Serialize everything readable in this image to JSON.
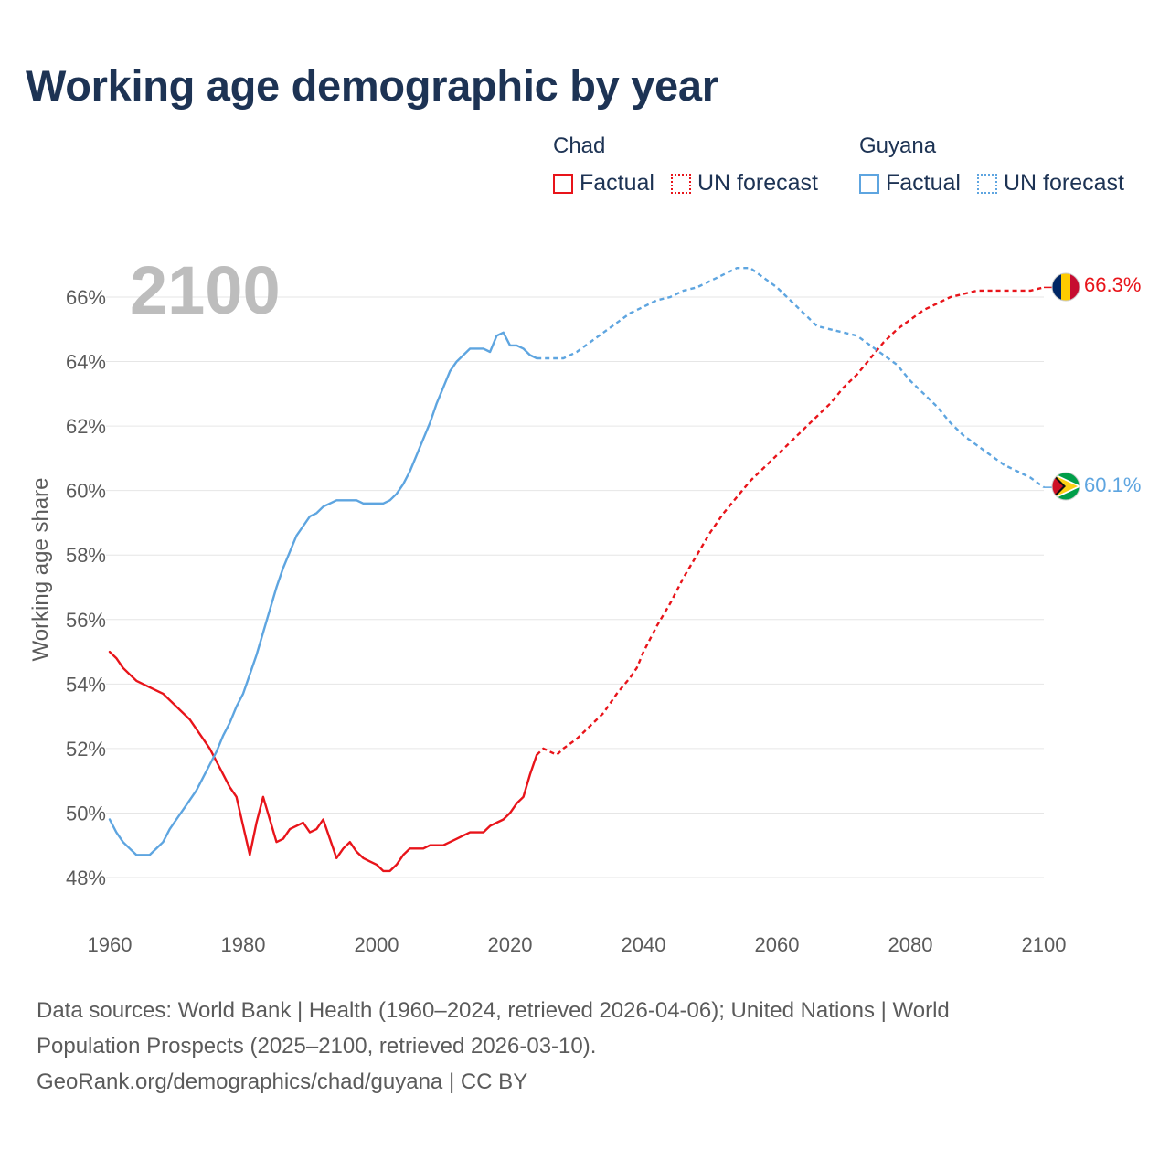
{
  "title": "Working age demographic by year",
  "colors": {
    "chad": "#e8141a",
    "guyana": "#5ea5e0",
    "grid": "#e6e6e6",
    "year_watermark": "#bdbdbd"
  },
  "legend": {
    "groups": [
      {
        "name": "Chad",
        "factual_label": "Factual",
        "forecast_label": "UN forecast",
        "color": "#e8141a"
      },
      {
        "name": "Guyana",
        "factual_label": "Factual",
        "forecast_label": "UN forecast",
        "color": "#5ea5e0"
      }
    ]
  },
  "footer": {
    "line1": "Data sources: World Bank | Health (1960–2024, retrieved 2026-04-06); United Nations | World",
    "line2": "Population Prospects (2025–2100, retrieved 2026-03-10).",
    "line3": "GeoRank.org/demographics/chad/guyana | CC BY"
  },
  "chart_data": {
    "type": "line",
    "title": "Working age demographic by year",
    "ylabel": "Working age share",
    "xlabel": "",
    "current_year_label": "2100",
    "xlim": [
      1960,
      2100
    ],
    "ylim": [
      47,
      67.5
    ],
    "x_ticks": [
      1960,
      1980,
      2000,
      2020,
      2040,
      2060,
      2080,
      2100
    ],
    "y_ticks": [
      48,
      50,
      52,
      54,
      56,
      58,
      60,
      62,
      64,
      66
    ],
    "y_tick_labels": [
      "48%",
      "50%",
      "52%",
      "54%",
      "56%",
      "58%",
      "60%",
      "62%",
      "64%",
      "66%"
    ],
    "grid": true,
    "forecast_start": 2024,
    "series": [
      {
        "name": "Chad",
        "color": "#e8141a",
        "end_label": "66.3%",
        "flag": "chad-flag",
        "points": [
          [
            1960,
            55.0
          ],
          [
            1961,
            54.8
          ],
          [
            1962,
            54.5
          ],
          [
            1963,
            54.3
          ],
          [
            1964,
            54.1
          ],
          [
            1966,
            53.9
          ],
          [
            1968,
            53.7
          ],
          [
            1970,
            53.3
          ],
          [
            1972,
            52.9
          ],
          [
            1974,
            52.3
          ],
          [
            1975,
            52.0
          ],
          [
            1976,
            51.6
          ],
          [
            1977,
            51.2
          ],
          [
            1978,
            50.8
          ],
          [
            1979,
            50.5
          ],
          [
            1980,
            49.6
          ],
          [
            1981,
            48.7
          ],
          [
            1982,
            49.7
          ],
          [
            1983,
            50.5
          ],
          [
            1984,
            49.8
          ],
          [
            1985,
            49.1
          ],
          [
            1986,
            49.2
          ],
          [
            1987,
            49.5
          ],
          [
            1988,
            49.6
          ],
          [
            1989,
            49.7
          ],
          [
            1990,
            49.4
          ],
          [
            1991,
            49.5
          ],
          [
            1992,
            49.8
          ],
          [
            1993,
            49.2
          ],
          [
            1994,
            48.6
          ],
          [
            1995,
            48.9
          ],
          [
            1996,
            49.1
          ],
          [
            1997,
            48.8
          ],
          [
            1998,
            48.6
          ],
          [
            1999,
            48.5
          ],
          [
            2000,
            48.4
          ],
          [
            2001,
            48.2
          ],
          [
            2002,
            48.2
          ],
          [
            2003,
            48.4
          ],
          [
            2004,
            48.7
          ],
          [
            2005,
            48.9
          ],
          [
            2006,
            48.9
          ],
          [
            2007,
            48.9
          ],
          [
            2008,
            49.0
          ],
          [
            2009,
            49.0
          ],
          [
            2010,
            49.0
          ],
          [
            2011,
            49.1
          ],
          [
            2012,
            49.2
          ],
          [
            2013,
            49.3
          ],
          [
            2014,
            49.4
          ],
          [
            2015,
            49.4
          ],
          [
            2016,
            49.4
          ],
          [
            2017,
            49.6
          ],
          [
            2018,
            49.7
          ],
          [
            2019,
            49.8
          ],
          [
            2020,
            50.0
          ],
          [
            2021,
            50.3
          ],
          [
            2022,
            50.5
          ],
          [
            2023,
            51.2
          ],
          [
            2024,
            51.8
          ],
          [
            2025,
            52.0
          ],
          [
            2026,
            51.9
          ],
          [
            2027,
            51.8
          ],
          [
            2028,
            52.0
          ],
          [
            2030,
            52.3
          ],
          [
            2032,
            52.7
          ],
          [
            2034,
            53.1
          ],
          [
            2036,
            53.7
          ],
          [
            2038,
            54.2
          ],
          [
            2039,
            54.5
          ],
          [
            2040,
            55.0
          ],
          [
            2042,
            55.8
          ],
          [
            2044,
            56.5
          ],
          [
            2046,
            57.3
          ],
          [
            2048,
            58.0
          ],
          [
            2050,
            58.7
          ],
          [
            2052,
            59.3
          ],
          [
            2054,
            59.8
          ],
          [
            2056,
            60.3
          ],
          [
            2058,
            60.7
          ],
          [
            2060,
            61.1
          ],
          [
            2062,
            61.5
          ],
          [
            2064,
            61.9
          ],
          [
            2066,
            62.3
          ],
          [
            2068,
            62.7
          ],
          [
            2070,
            63.2
          ],
          [
            2072,
            63.6
          ],
          [
            2074,
            64.1
          ],
          [
            2076,
            64.6
          ],
          [
            2078,
            65.0
          ],
          [
            2080,
            65.3
          ],
          [
            2082,
            65.6
          ],
          [
            2084,
            65.8
          ],
          [
            2086,
            66.0
          ],
          [
            2088,
            66.1
          ],
          [
            2090,
            66.2
          ],
          [
            2095,
            66.2
          ],
          [
            2098,
            66.2
          ],
          [
            2100,
            66.3
          ]
        ]
      },
      {
        "name": "Guyana",
        "color": "#5ea5e0",
        "end_label": "60.1%",
        "flag": "guyana-flag",
        "points": [
          [
            1960,
            49.8
          ],
          [
            1961,
            49.4
          ],
          [
            1962,
            49.1
          ],
          [
            1963,
            48.9
          ],
          [
            1964,
            48.7
          ],
          [
            1965,
            48.7
          ],
          [
            1966,
            48.7
          ],
          [
            1967,
            48.9
          ],
          [
            1968,
            49.1
          ],
          [
            1969,
            49.5
          ],
          [
            1970,
            49.8
          ],
          [
            1971,
            50.1
          ],
          [
            1972,
            50.4
          ],
          [
            1973,
            50.7
          ],
          [
            1974,
            51.1
          ],
          [
            1975,
            51.5
          ],
          [
            1976,
            51.9
          ],
          [
            1977,
            52.4
          ],
          [
            1978,
            52.8
          ],
          [
            1979,
            53.3
          ],
          [
            1980,
            53.7
          ],
          [
            1981,
            54.3
          ],
          [
            1982,
            54.9
          ],
          [
            1983,
            55.6
          ],
          [
            1984,
            56.3
          ],
          [
            1985,
            57.0
          ],
          [
            1986,
            57.6
          ],
          [
            1987,
            58.1
          ],
          [
            1988,
            58.6
          ],
          [
            1989,
            58.9
          ],
          [
            1990,
            59.2
          ],
          [
            1991,
            59.3
          ],
          [
            1992,
            59.5
          ],
          [
            1993,
            59.6
          ],
          [
            1994,
            59.7
          ],
          [
            1995,
            59.7
          ],
          [
            1996,
            59.7
          ],
          [
            1997,
            59.7
          ],
          [
            1998,
            59.6
          ],
          [
            1999,
            59.6
          ],
          [
            2000,
            59.6
          ],
          [
            2001,
            59.6
          ],
          [
            2002,
            59.7
          ],
          [
            2003,
            59.9
          ],
          [
            2004,
            60.2
          ],
          [
            2005,
            60.6
          ],
          [
            2006,
            61.1
          ],
          [
            2007,
            61.6
          ],
          [
            2008,
            62.1
          ],
          [
            2009,
            62.7
          ],
          [
            2010,
            63.2
          ],
          [
            2011,
            63.7
          ],
          [
            2012,
            64.0
          ],
          [
            2013,
            64.2
          ],
          [
            2014,
            64.4
          ],
          [
            2015,
            64.4
          ],
          [
            2016,
            64.4
          ],
          [
            2017,
            64.3
          ],
          [
            2018,
            64.8
          ],
          [
            2019,
            64.9
          ],
          [
            2020,
            64.5
          ],
          [
            2021,
            64.5
          ],
          [
            2022,
            64.4
          ],
          [
            2023,
            64.2
          ],
          [
            2024,
            64.1
          ],
          [
            2025,
            64.1
          ],
          [
            2026,
            64.1
          ],
          [
            2027,
            64.1
          ],
          [
            2028,
            64.1
          ],
          [
            2030,
            64.3
          ],
          [
            2032,
            64.6
          ],
          [
            2034,
            64.9
          ],
          [
            2036,
            65.2
          ],
          [
            2038,
            65.5
          ],
          [
            2040,
            65.7
          ],
          [
            2042,
            65.9
          ],
          [
            2044,
            66.0
          ],
          [
            2046,
            66.2
          ],
          [
            2048,
            66.3
          ],
          [
            2050,
            66.5
          ],
          [
            2052,
            66.7
          ],
          [
            2054,
            66.9
          ],
          [
            2056,
            66.9
          ],
          [
            2058,
            66.6
          ],
          [
            2060,
            66.3
          ],
          [
            2062,
            65.9
          ],
          [
            2064,
            65.5
          ],
          [
            2066,
            65.1
          ],
          [
            2068,
            65.0
          ],
          [
            2070,
            64.9
          ],
          [
            2072,
            64.8
          ],
          [
            2074,
            64.5
          ],
          [
            2076,
            64.2
          ],
          [
            2078,
            63.9
          ],
          [
            2080,
            63.4
          ],
          [
            2082,
            63.0
          ],
          [
            2084,
            62.6
          ],
          [
            2086,
            62.1
          ],
          [
            2088,
            61.7
          ],
          [
            2090,
            61.4
          ],
          [
            2092,
            61.1
          ],
          [
            2094,
            60.8
          ],
          [
            2096,
            60.6
          ],
          [
            2098,
            60.4
          ],
          [
            2100,
            60.1
          ]
        ]
      }
    ]
  }
}
